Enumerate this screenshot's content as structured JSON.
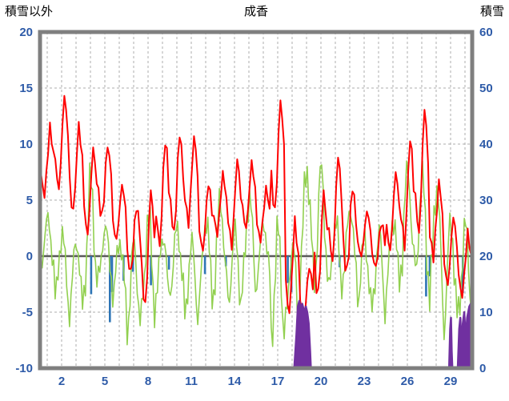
{
  "header": {
    "left_axis_title": "積雪以外",
    "title": "成香",
    "right_axis_title": "積雪"
  },
  "chart_data": {
    "type": "line",
    "title": "成香",
    "left_axis": {
      "label": "積雪以外",
      "min": -10,
      "max": 20,
      "step": 5,
      "ticks": [
        20,
        15,
        10,
        5,
        0,
        -5,
        -10
      ]
    },
    "right_axis": {
      "label": "積雪",
      "min": 0,
      "max": 60,
      "step": 10,
      "ticks": [
        60,
        50,
        40,
        30,
        20,
        10,
        0
      ]
    },
    "x_axis": {
      "days": 30,
      "gridline_every_day": true,
      "tick_days": [
        2,
        5,
        8,
        11,
        14,
        17,
        20,
        23,
        26,
        29
      ]
    },
    "grid": {
      "dashed": true,
      "zero_line_solid": true
    },
    "colors": {
      "grid": "#ADADAD",
      "frame": "#7F7F7F",
      "zero_line": "#595959",
      "tick_labels": "#2E5BA8",
      "red": "#FF0000",
      "green": "#92D050",
      "blue": "#2E75B6",
      "purple": "#7030A0"
    },
    "series": [
      {
        "id": "red-line",
        "type": "line",
        "axis": "left",
        "color": "#FF0000",
        "daily_min": [
          5.5,
          6.0,
          4.0,
          2.0,
          3.5,
          1.5,
          -1.5,
          -4.5,
          1.0,
          2.0,
          3.0,
          0.5,
          2.0,
          1.0,
          2.5,
          1.5,
          4.0,
          -5.0,
          -5.5,
          -3.5,
          -0.5,
          -1.5,
          0.0,
          -1.0,
          0.5,
          1.0,
          2.0,
          0.0,
          -2.5,
          -3.5
        ],
        "daily_max": [
          11.4,
          14.3,
          11.6,
          9.6,
          9.9,
          6.3,
          4.5,
          6.0,
          10.4,
          11.0,
          10.6,
          6.5,
          7.3,
          8.6,
          8.3,
          6.0,
          13.9,
          3.0,
          -1.0,
          5.8,
          9.0,
          6.3,
          4.0,
          3.0,
          7.5,
          10.5,
          13.2,
          6.5,
          3.5,
          2.0
        ]
      },
      {
        "id": "green-line",
        "type": "line",
        "axis": "left",
        "color": "#92D050",
        "daily_min": [
          -1.0,
          -4.0,
          -5.0,
          -3.0,
          -2.0,
          -4.0,
          -6.5,
          -5.0,
          -4.0,
          -3.0,
          -5.5,
          -4.0,
          -3.0,
          -4.5,
          -3.0,
          -2.0,
          -7.5,
          -6.0,
          -1.5,
          -2.0,
          -3.0,
          -2.0,
          -4.0,
          -5.0,
          -3.0,
          -1.0,
          -2.0,
          -4.0,
          -6.0,
          -5.0
        ],
        "daily_max": [
          3.2,
          2.0,
          1.5,
          6.5,
          2.5,
          1.5,
          1.0,
          3.5,
          2.0,
          2.5,
          1.0,
          3.5,
          5.0,
          2.0,
          5.5,
          3.0,
          2.0,
          1.0,
          8.0,
          7.5,
          3.0,
          4.5,
          1.5,
          2.0,
          3.5,
          7.8,
          7.0,
          6.5,
          3.0,
          2.5
        ]
      },
      {
        "id": "blue-bars",
        "type": "bar",
        "axis": "left",
        "color": "#2E75B6",
        "bars": [
          [
            4.05,
            -3.4
          ],
          [
            5.35,
            -5.9
          ],
          [
            5.5,
            -3.2
          ],
          [
            6.3,
            -2.2
          ],
          [
            6.95,
            -1.4
          ],
          [
            8.2,
            -2.6
          ],
          [
            9.45,
            -1.2
          ],
          [
            11.95,
            -1.6
          ],
          [
            13.4,
            -0.9
          ],
          [
            17.7,
            -2.4
          ],
          [
            17.95,
            -3.2
          ],
          [
            21.3,
            -1.0
          ],
          [
            27.3,
            -3.6
          ],
          [
            27.55,
            -1.8
          ],
          [
            29.85,
            -3.3
          ]
        ]
      },
      {
        "id": "purple-snow",
        "type": "area",
        "axis": "right",
        "color": "#7030A0",
        "segments": [
          [
            [
              18.15,
              0
            ],
            [
              18.3,
              6
            ],
            [
              18.4,
              11
            ],
            [
              18.5,
              12
            ],
            [
              18.6,
              10.5
            ],
            [
              18.7,
              11.5
            ],
            [
              18.85,
              10
            ],
            [
              18.95,
              11
            ],
            [
              19.05,
              10
            ],
            [
              19.15,
              8
            ],
            [
              19.25,
              3
            ],
            [
              19.3,
              0
            ]
          ],
          [
            [
              28.9,
              0
            ],
            [
              28.97,
              7
            ],
            [
              29.03,
              9
            ],
            [
              29.08,
              3
            ],
            [
              29.12,
              0
            ]
          ],
          [
            [
              29.5,
              0
            ],
            [
              29.6,
              7
            ],
            [
              29.68,
              9
            ],
            [
              29.75,
              4
            ],
            [
              29.85,
              8
            ],
            [
              29.95,
              10
            ],
            [
              30.05,
              5
            ],
            [
              30.15,
              9
            ],
            [
              30.3,
              11
            ],
            [
              30.5,
              12
            ]
          ]
        ]
      }
    ]
  }
}
